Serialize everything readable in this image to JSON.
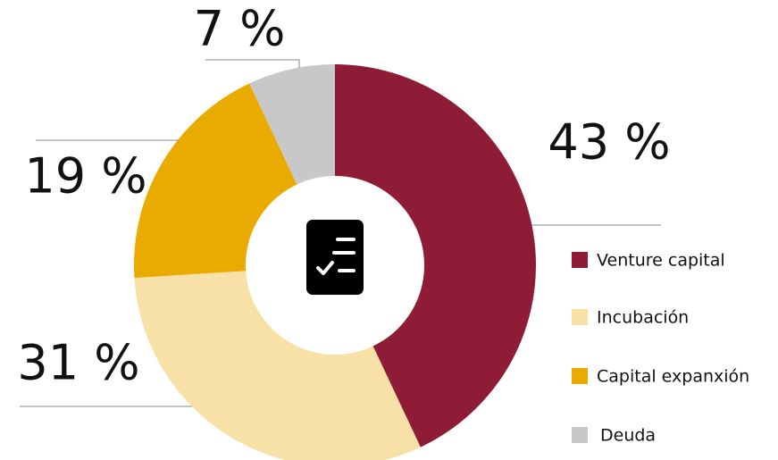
{
  "chart_data": {
    "type": "donut",
    "categories": [
      "Venture capital",
      "Incubación",
      "Capital expanxión",
      "Deuda"
    ],
    "values": [
      43,
      31,
      19,
      7
    ],
    "value_labels": [
      "43 %",
      "31 %",
      "19 %",
      "7 %"
    ],
    "colors": [
      "#8e1c37",
      "#f7e1a6",
      "#e9ab00",
      "#c8c8ca"
    ],
    "legend": "right"
  }
}
